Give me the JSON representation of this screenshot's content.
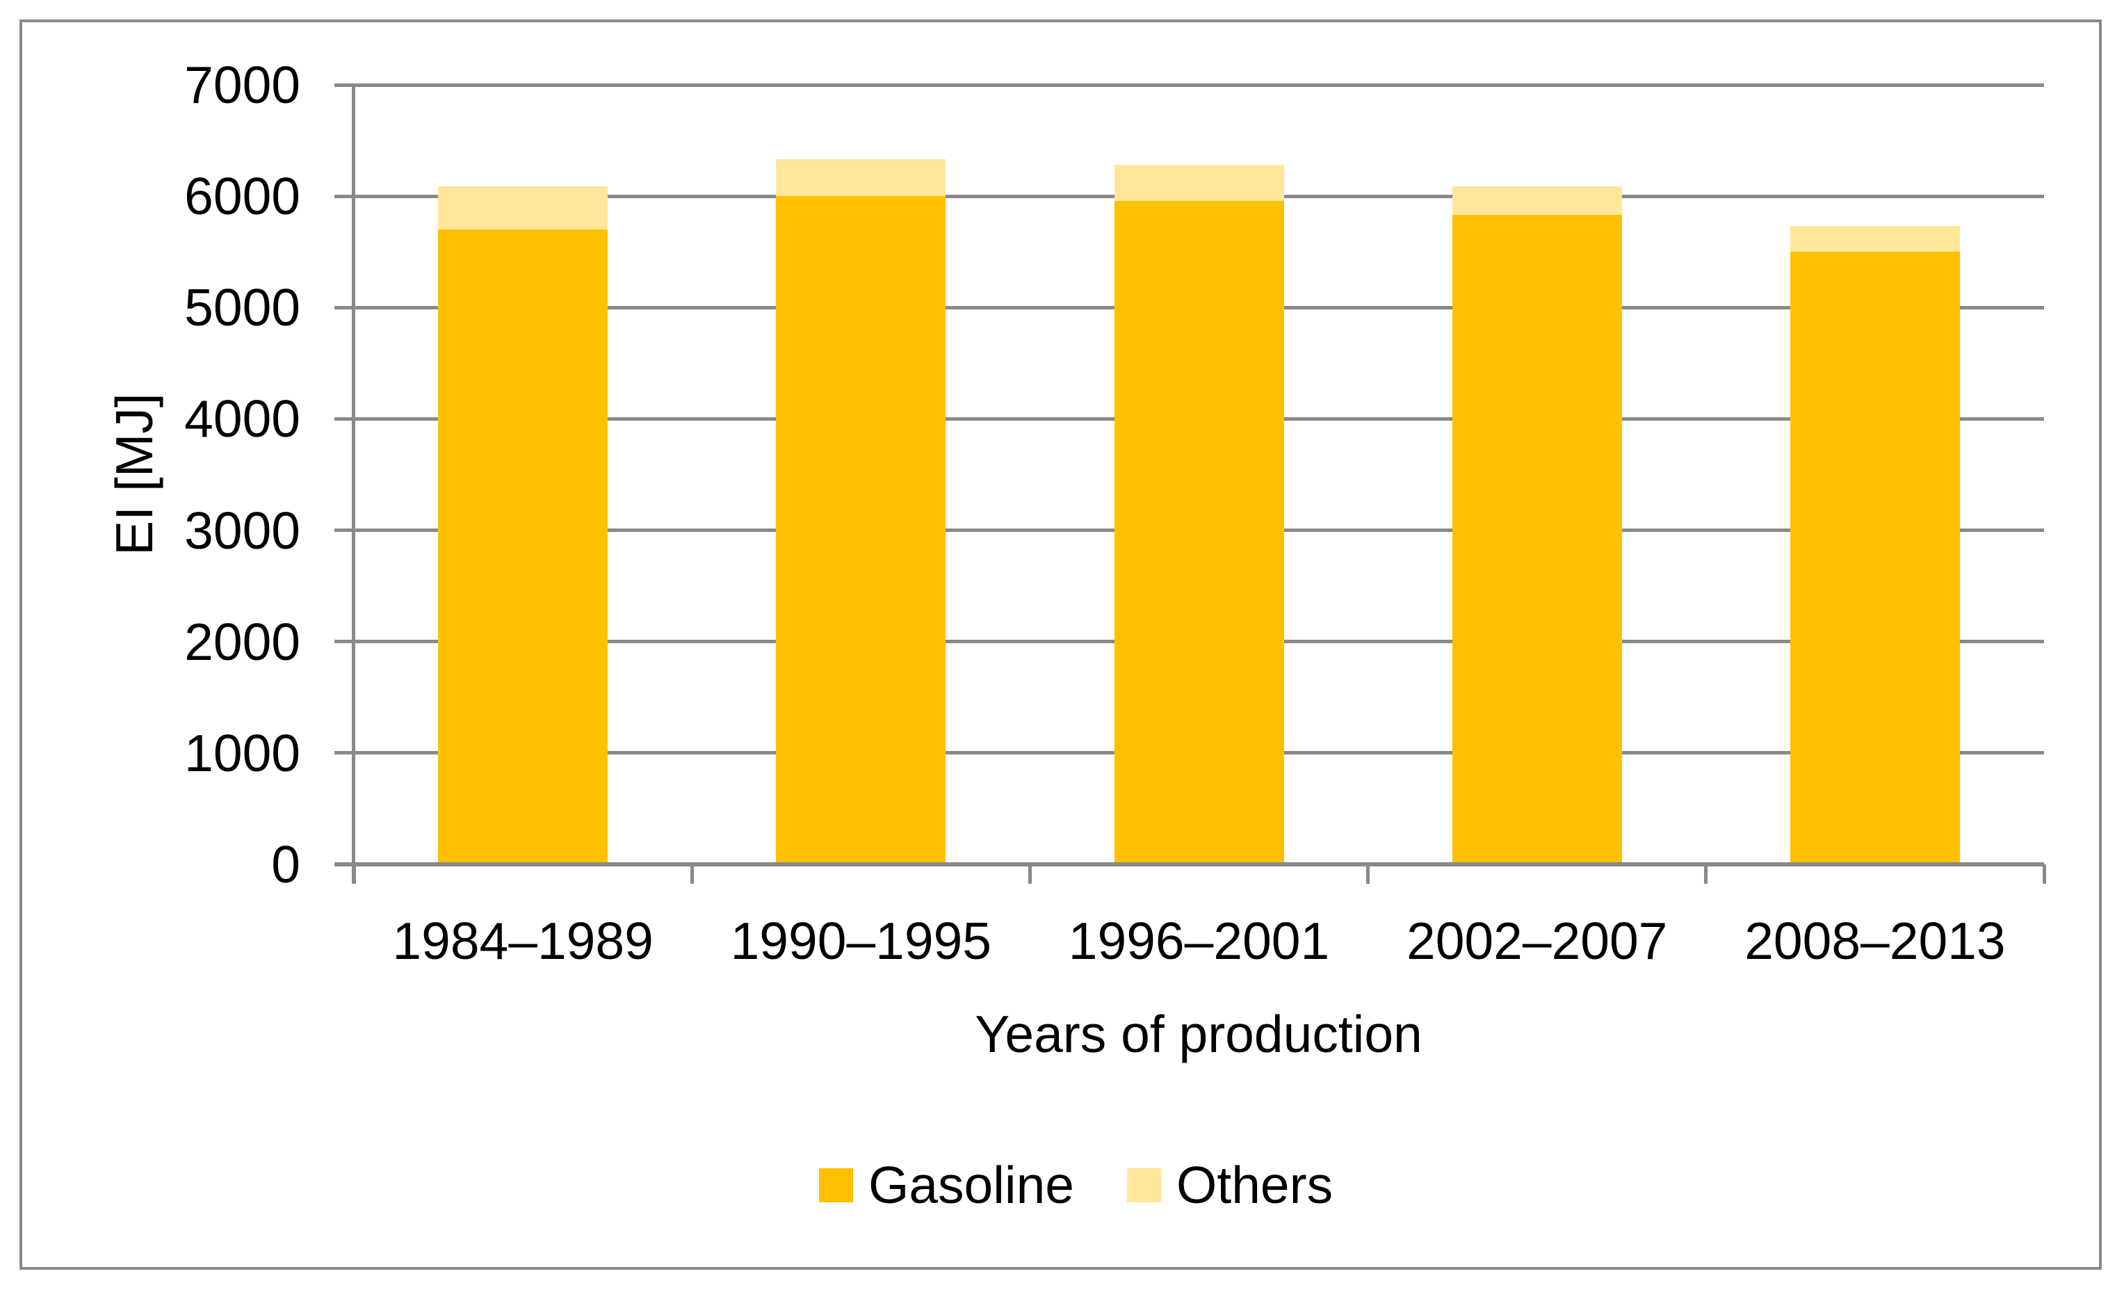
{
  "chart_data": {
    "type": "bar",
    "stacked": true,
    "title": "",
    "xlabel": "Years of production",
    "ylabel": "EI [MJ]",
    "categories": [
      "1984–1989",
      "1990–1995",
      "1996–2001",
      "2002–2007",
      "2008–2013"
    ],
    "series": [
      {
        "name": "Gasoline",
        "color": "#FFC000",
        "values": [
          5700,
          6000,
          5960,
          5830,
          5500
        ]
      },
      {
        "name": "Others",
        "color": "#FFE699",
        "values": [
          390,
          330,
          320,
          260,
          230
        ]
      }
    ],
    "totals": [
      6090,
      6330,
      6280,
      6090,
      5730
    ],
    "ylim": [
      0,
      7000
    ],
    "yticks": [
      0,
      1000,
      2000,
      3000,
      4000,
      5000,
      6000,
      7000
    ],
    "grid": "horizontal",
    "legend_position": "bottom",
    "legend_labels": [
      "Gasoline",
      "Others"
    ],
    "colors": {
      "axis": "#898989",
      "gridline": "#898989",
      "text": "#000000",
      "background": "#FFFFFF",
      "border": "#898989"
    }
  }
}
